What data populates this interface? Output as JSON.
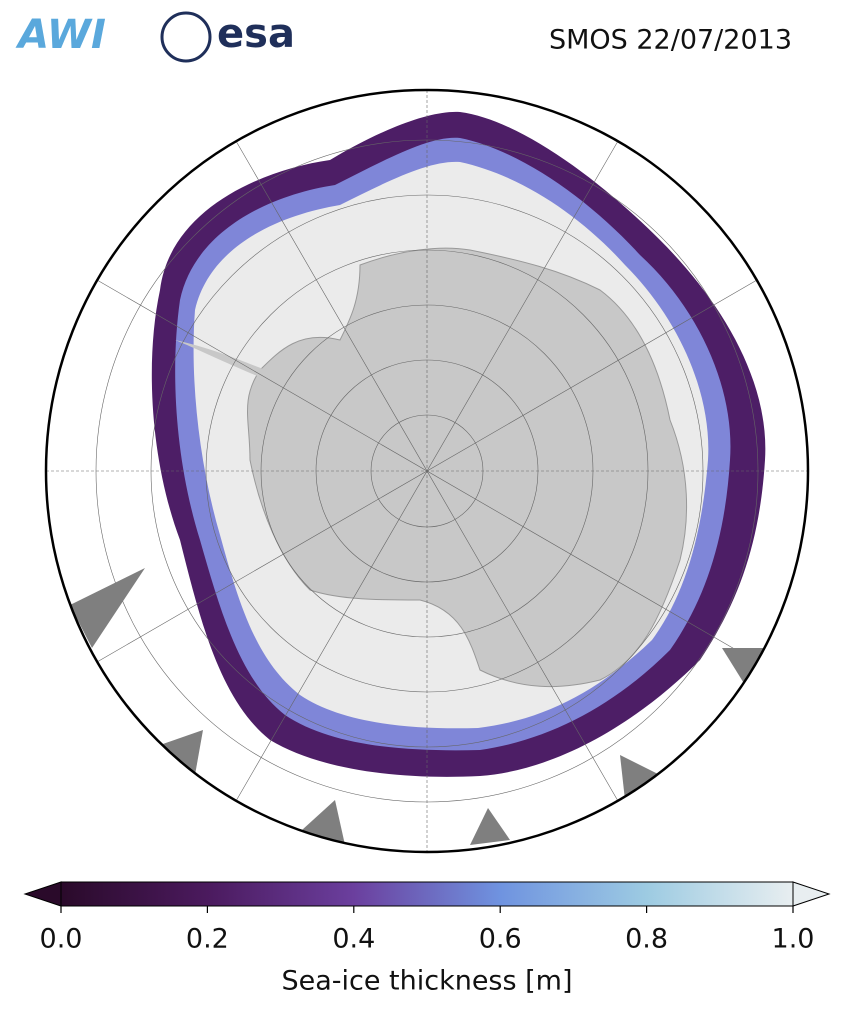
{
  "header": {
    "logos": [
      "AWI",
      "esa"
    ],
    "title": "SMOS 22/07/2013"
  },
  "colorbar": {
    "range": [
      0,
      1
    ],
    "ticks": [
      {
        "value": 0,
        "label": "0.0"
      },
      0.2,
      0.4,
      0.6,
      0.8,
      {
        "value": 1,
        "label": "1.0"
      }
    ],
    "colors": [
      "#2a0a2a",
      "#4b1a5e",
      "#6b3f9e",
      "#6f93e0",
      "#9dcbe2",
      "#e8eef0"
    ],
    "label": "Sea-ice thickness [m]"
  }
}
